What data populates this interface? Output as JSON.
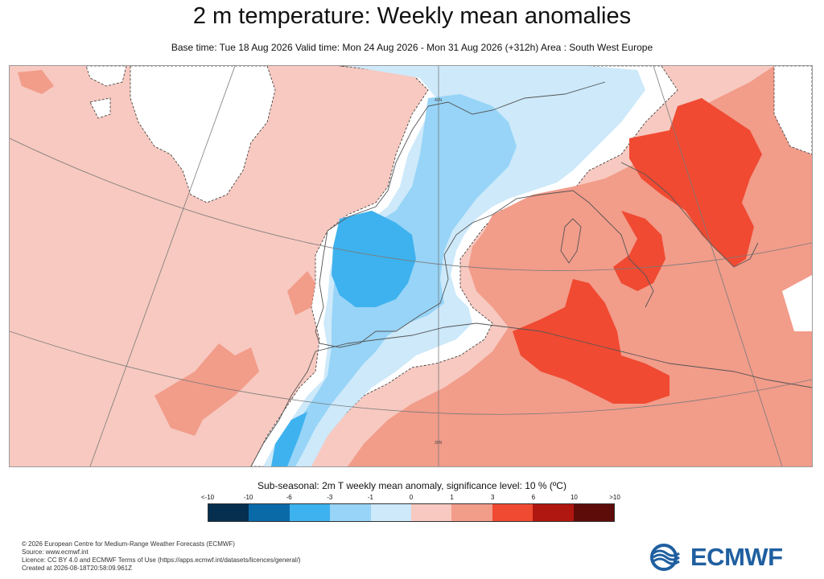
{
  "header": {
    "title": "2 m temperature: Weekly mean anomalies",
    "subtitle": "Base time: Tue 18 Aug 2026 Valid time: Mon 24 Aug 2026 - Mon 31 Aug 2026 (+312h) Area : South West Europe"
  },
  "map": {
    "graticule_labels": [
      "40N",
      "30N"
    ],
    "anomaly_colors": {
      "cold_1": "#cde9fa",
      "cold_2": "#97d4f7",
      "cold_3": "#3eb2ee",
      "neutral": "#ffffff",
      "warm_1": "#f7c9c0",
      "warm_2": "#f29c8a",
      "warm_3": "#f04a32",
      "land_line": "#555555"
    }
  },
  "legend": {
    "title": "Sub-seasonal: 2m T weekly mean anomaly, significance level: 10 % (ºC)",
    "ticks": [
      "<-10",
      "-10",
      "-6",
      "-3",
      "-1",
      "0",
      "1",
      "3",
      "6",
      "10",
      ">10"
    ],
    "colors": [
      "#062f4f",
      "#0a6aa8",
      "#3eb2ee",
      "#97d4f7",
      "#cde9fa",
      "#ffffff",
      "#f7c9c0",
      "#f29c8a",
      "#f04a32",
      "#b01710",
      "#5e0c0a"
    ]
  },
  "footer": {
    "copyright": "© 2026 European Centre for Medium-Range Weather Forecasts (ECMWF)",
    "source": "Source: www.ecmwf.int",
    "licence": "Licence: CC BY 4.0 and ECMWF Terms of Use (https://apps.ecmwf.int/datasets/licences/general/)",
    "created": "Created at 2026-08-18T20:58:09.961Z"
  },
  "logo": {
    "text": "ECMWF",
    "color": "#1f5fa0"
  }
}
